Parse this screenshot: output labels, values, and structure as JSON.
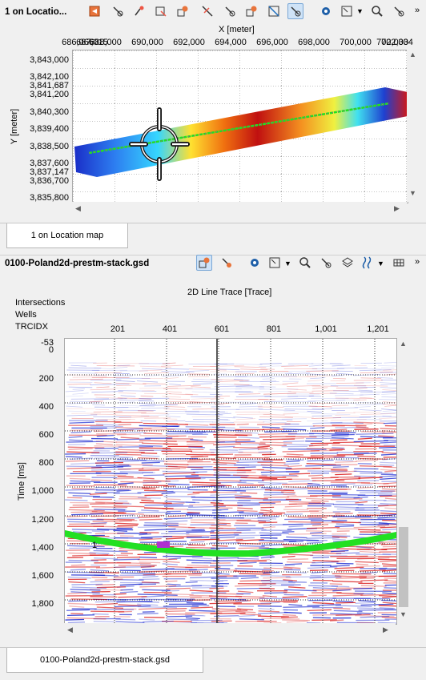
{
  "top_panel": {
    "title": "1 on Locatio...",
    "x_axis_label": "X [meter]",
    "y_axis_label": "Y [meter]",
    "x_ticks": [
      "686,066",
      "687,015",
      "688,000",
      "690,000",
      "692,000",
      "694,000",
      "696,000",
      "698,000",
      "700,000",
      "702,000",
      "702,334"
    ],
    "y_ticks": [
      "3,843,000",
      "3,842,100",
      "3,841,687",
      "3,841,200",
      "3,840,300",
      "3,839,400",
      "3,838,500",
      "3,837,600",
      "3,837,147",
      "3,836,700",
      "3,835,800"
    ],
    "tab_label": "1 on Location map"
  },
  "bottom_panel": {
    "title": "0100-Poland2d-prestm-stack.gsd",
    "x_axis_label": "2D Line Trace [Trace]",
    "header_labels": [
      "Intersections",
      "Wells",
      "TRCIDX"
    ],
    "x_ticks": [
      "201",
      "401",
      "601",
      "801",
      "1,001",
      "1,201"
    ],
    "y_axis_label": "Time [ms]",
    "y_ticks": [
      "-53",
      "0",
      "200",
      "400",
      "600",
      "800",
      "1,000",
      "1,200",
      "1,400",
      "1,600",
      "1,800"
    ],
    "horizon_label": "1",
    "tab_label": "0100-Poland2d-prestm-stack.gsd"
  },
  "icons_top": [
    "seismic-icon",
    "pointer-icon",
    "pick-icon",
    "digitize-icon",
    "pick-settings-icon",
    "measure-icon",
    "edit-icon",
    "zoom-box-icon",
    "select-icon",
    "settings-icon",
    "zoom-extent-icon",
    "search-icon",
    "tool-icon"
  ],
  "icons_bottom": [
    "pick-settings-icon",
    "edit-icon",
    "settings-icon",
    "zoom-extent-icon",
    "search-icon",
    "tool-icon",
    "layers-icon",
    "wiggle-icon",
    "table-icon"
  ],
  "colors": {
    "horizon": "#22e022",
    "window_bg": "#f0f0f0",
    "accent": "#1e6fbf"
  }
}
